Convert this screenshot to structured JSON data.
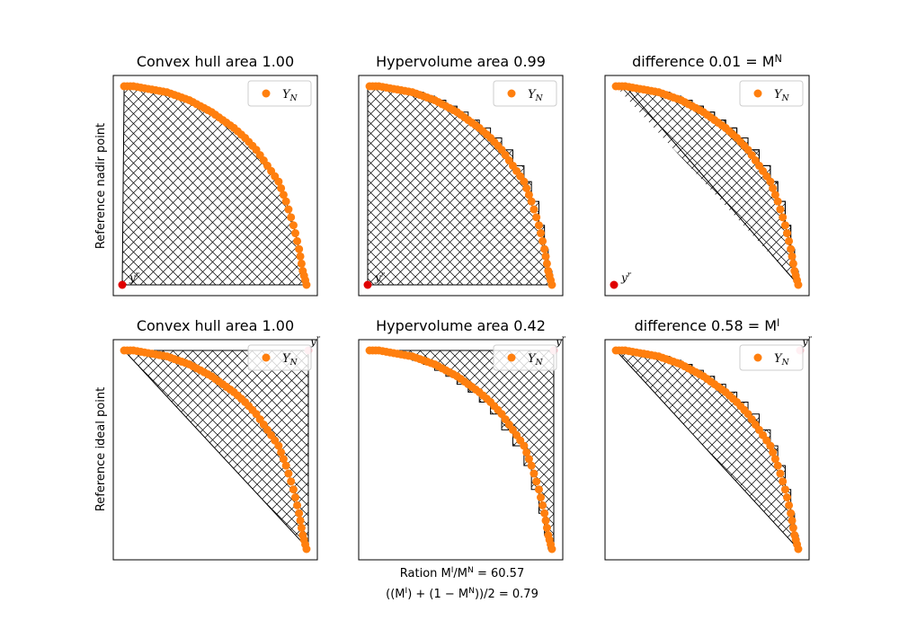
{
  "figure": {
    "row_labels": [
      "Reference nadir point",
      "Reference ideal point"
    ],
    "footer_lines": [
      "Ration M^I/M^N = 60.57",
      "((M^I) + (1 - M^N))/2 = 0.79"
    ]
  },
  "colors": {
    "points": "#ff7f0e",
    "nadir_ref": "#e00000",
    "ideal_ref": "#ffb6c1",
    "hatch": "#000000",
    "frame": "#000000"
  },
  "chart_data": [
    {
      "type": "scatter",
      "title": "Convex hull area 1.00",
      "legend": {
        "label": "Y_N",
        "loc": "upper right"
      },
      "reference_label": "y^r",
      "reference_point": [
        0,
        0
      ],
      "series": [
        {
          "name": "Y_N",
          "points": [
            [
              0.01,
              1.0
            ],
            [
              0.06,
              1.0
            ],
            [
              0.12,
              0.99
            ],
            [
              0.18,
              0.98
            ],
            [
              0.24,
              0.97
            ],
            [
              0.3,
              0.95
            ],
            [
              0.36,
              0.93
            ],
            [
              0.42,
              0.9
            ],
            [
              0.48,
              0.87
            ],
            [
              0.54,
              0.83
            ],
            [
              0.6,
              0.79
            ],
            [
              0.66,
              0.74
            ],
            [
              0.72,
              0.68
            ],
            [
              0.78,
              0.6
            ],
            [
              0.84,
              0.52
            ],
            [
              0.88,
              0.42
            ],
            [
              0.92,
              0.3
            ],
            [
              0.95,
              0.18
            ],
            [
              0.97,
              0.07
            ],
            [
              0.99,
              0.0
            ]
          ]
        }
      ],
      "area": "convex_hull",
      "xlim": [
        0,
        1
      ],
      "ylim": [
        0,
        1
      ],
      "axes_visible": false
    },
    {
      "type": "scatter",
      "title": "Hypervolume area 0.99",
      "legend": {
        "label": "Y_N",
        "loc": "upper right"
      },
      "reference_label": "y^r",
      "reference_point": [
        0,
        0
      ],
      "series": [
        {
          "name": "Y_N",
          "points": [
            [
              0.01,
              1.0
            ],
            [
              0.06,
              1.0
            ],
            [
              0.12,
              0.99
            ],
            [
              0.18,
              0.98
            ],
            [
              0.24,
              0.97
            ],
            [
              0.3,
              0.95
            ],
            [
              0.36,
              0.93
            ],
            [
              0.42,
              0.9
            ],
            [
              0.48,
              0.87
            ],
            [
              0.54,
              0.83
            ],
            [
              0.6,
              0.79
            ],
            [
              0.66,
              0.74
            ],
            [
              0.72,
              0.68
            ],
            [
              0.78,
              0.6
            ],
            [
              0.84,
              0.52
            ],
            [
              0.88,
              0.42
            ],
            [
              0.92,
              0.3
            ],
            [
              0.95,
              0.18
            ],
            [
              0.97,
              0.07
            ],
            [
              0.99,
              0.0
            ]
          ]
        }
      ],
      "area": "hypervolume",
      "xlim": [
        0,
        1
      ],
      "ylim": [
        0,
        1
      ],
      "axes_visible": false
    },
    {
      "type": "scatter",
      "title": "difference 0.01 = M^N",
      "legend": {
        "label": "Y_N",
        "loc": "upper right"
      },
      "reference_label": "y^r",
      "reference_point": [
        0,
        0
      ],
      "series": [
        {
          "name": "Y_N",
          "points": [
            [
              0.01,
              1.0
            ],
            [
              0.06,
              1.0
            ],
            [
              0.12,
              0.99
            ],
            [
              0.18,
              0.98
            ],
            [
              0.24,
              0.97
            ],
            [
              0.3,
              0.95
            ],
            [
              0.36,
              0.93
            ],
            [
              0.42,
              0.9
            ],
            [
              0.48,
              0.87
            ],
            [
              0.54,
              0.83
            ],
            [
              0.6,
              0.79
            ],
            [
              0.66,
              0.74
            ],
            [
              0.72,
              0.68
            ],
            [
              0.78,
              0.6
            ],
            [
              0.84,
              0.52
            ],
            [
              0.88,
              0.42
            ],
            [
              0.92,
              0.3
            ],
            [
              0.95,
              0.18
            ],
            [
              0.97,
              0.07
            ],
            [
              0.99,
              0.0
            ]
          ]
        }
      ],
      "area": "difference",
      "xlim": [
        0,
        1
      ],
      "ylim": [
        0,
        1
      ],
      "axes_visible": false
    },
    {
      "type": "scatter",
      "title": "Convex hull area 1.00",
      "legend": {
        "label": "Y_N",
        "loc": "upper right"
      },
      "reference_label": "y^r",
      "reference_point": [
        1,
        1
      ],
      "series": [
        {
          "name": "Y_N",
          "points": [
            [
              0.01,
              1.0
            ],
            [
              0.06,
              1.0
            ],
            [
              0.12,
              0.99
            ],
            [
              0.18,
              0.98
            ],
            [
              0.24,
              0.97
            ],
            [
              0.3,
              0.95
            ],
            [
              0.36,
              0.93
            ],
            [
              0.42,
              0.9
            ],
            [
              0.48,
              0.87
            ],
            [
              0.54,
              0.83
            ],
            [
              0.6,
              0.79
            ],
            [
              0.66,
              0.74
            ],
            [
              0.72,
              0.68
            ],
            [
              0.78,
              0.6
            ],
            [
              0.84,
              0.52
            ],
            [
              0.88,
              0.42
            ],
            [
              0.92,
              0.3
            ],
            [
              0.95,
              0.18
            ],
            [
              0.97,
              0.07
            ],
            [
              0.99,
              0.0
            ]
          ]
        }
      ],
      "area": "convex_hull",
      "xlim": [
        0,
        1
      ],
      "ylim": [
        0,
        1
      ],
      "axes_visible": false
    },
    {
      "type": "scatter",
      "title": "Hypervolume area 0.42",
      "legend": {
        "label": "Y_N",
        "loc": "upper right"
      },
      "reference_label": "y^r",
      "reference_point": [
        1,
        1
      ],
      "series": [
        {
          "name": "Y_N",
          "points": [
            [
              0.01,
              1.0
            ],
            [
              0.06,
              1.0
            ],
            [
              0.12,
              0.99
            ],
            [
              0.18,
              0.98
            ],
            [
              0.24,
              0.97
            ],
            [
              0.3,
              0.95
            ],
            [
              0.36,
              0.93
            ],
            [
              0.42,
              0.9
            ],
            [
              0.48,
              0.87
            ],
            [
              0.54,
              0.83
            ],
            [
              0.6,
              0.79
            ],
            [
              0.66,
              0.74
            ],
            [
              0.72,
              0.68
            ],
            [
              0.78,
              0.6
            ],
            [
              0.84,
              0.52
            ],
            [
              0.88,
              0.42
            ],
            [
              0.92,
              0.3
            ],
            [
              0.95,
              0.18
            ],
            [
              0.97,
              0.07
            ],
            [
              0.99,
              0.0
            ]
          ]
        }
      ],
      "area": "hypervolume",
      "xlim": [
        0,
        1
      ],
      "ylim": [
        0,
        1
      ],
      "axes_visible": false
    },
    {
      "type": "scatter",
      "title": "difference 0.58 = M^I",
      "legend": {
        "label": "Y_N",
        "loc": "upper right"
      },
      "reference_label": "y^r",
      "reference_point": [
        1,
        1
      ],
      "series": [
        {
          "name": "Y_N",
          "points": [
            [
              0.01,
              1.0
            ],
            [
              0.06,
              1.0
            ],
            [
              0.12,
              0.99
            ],
            [
              0.18,
              0.98
            ],
            [
              0.24,
              0.97
            ],
            [
              0.3,
              0.95
            ],
            [
              0.36,
              0.93
            ],
            [
              0.42,
              0.9
            ],
            [
              0.48,
              0.87
            ],
            [
              0.54,
              0.83
            ],
            [
              0.6,
              0.79
            ],
            [
              0.66,
              0.74
            ],
            [
              0.72,
              0.68
            ],
            [
              0.78,
              0.6
            ],
            [
              0.84,
              0.52
            ],
            [
              0.88,
              0.42
            ],
            [
              0.92,
              0.3
            ],
            [
              0.95,
              0.18
            ],
            [
              0.97,
              0.07
            ],
            [
              0.99,
              0.0
            ]
          ]
        }
      ],
      "area": "difference",
      "xlim": [
        0,
        1
      ],
      "ylim": [
        0,
        1
      ],
      "axes_visible": false
    }
  ]
}
